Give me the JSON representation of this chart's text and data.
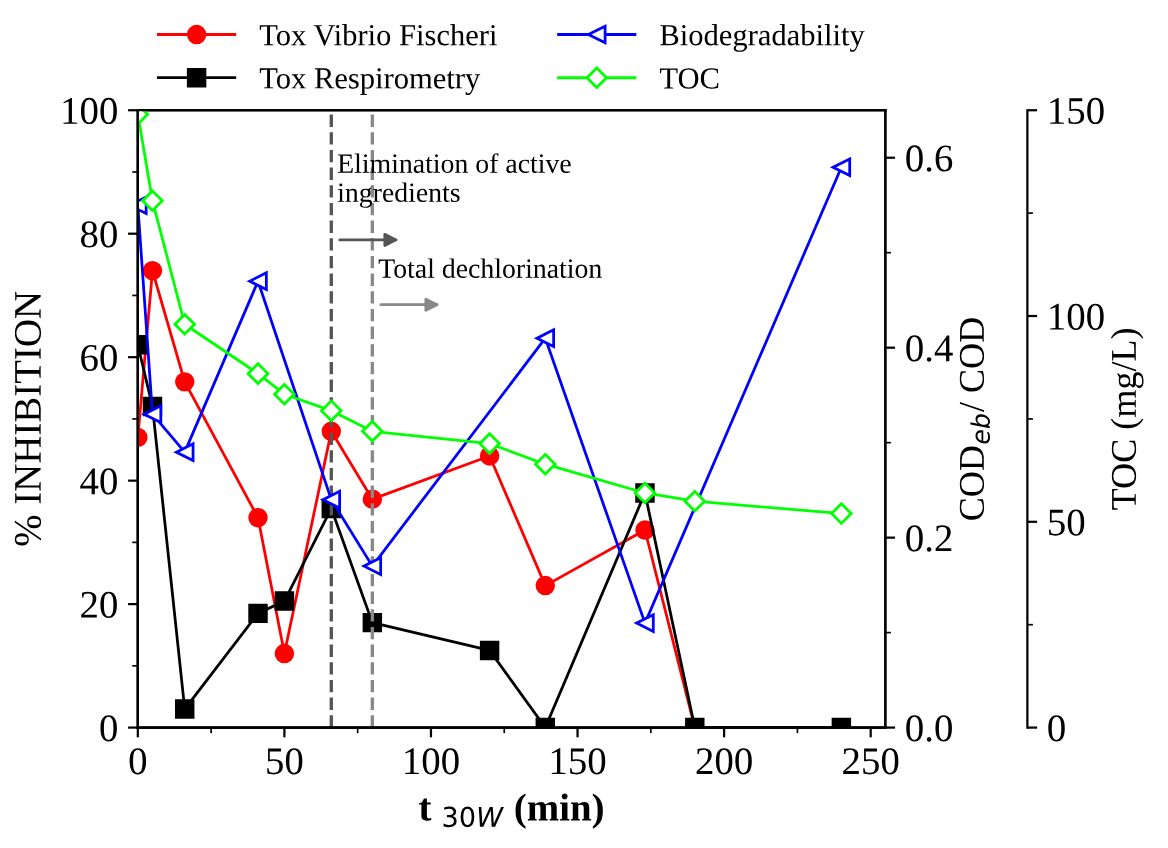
{
  "chart_data": {
    "type": "line",
    "xlabel": "t $_{30W}$ (min)",
    "ylabel": "% INHIBITION",
    "y2label": "COD$_{eb}$/ COD",
    "y3label": "TOC (mg/L)",
    "xlim": [
      0,
      255
    ],
    "xticks": [
      0,
      50,
      100,
      150,
      200,
      250
    ],
    "ylim": [
      0,
      100
    ],
    "yticks": [
      0,
      20,
      40,
      60,
      80,
      100
    ],
    "y2lim": [
      0,
      0.65
    ],
    "y2ticks": [
      {
        "value": 0,
        "label": "0.0"
      },
      0.2,
      0.4,
      0.6
    ],
    "y3lim": [
      0,
      150
    ],
    "y3ticks": [
      0,
      50,
      100,
      150
    ],
    "legend": "top",
    "grid": false,
    "series": [
      {
        "name": "Tox Vibrio Fischeri",
        "color": "#ff0000",
        "marker": "circle",
        "x": [
          0,
          5,
          16,
          41,
          50,
          66,
          80,
          120,
          139,
          173,
          190
        ],
        "values": [
          47,
          74,
          56,
          34,
          12,
          48,
          37,
          44,
          23,
          32,
          0
        ]
      },
      {
        "name": "Tox Respirometry",
        "color": "#000000",
        "marker": "square",
        "x": [
          0,
          5,
          16,
          41,
          50,
          66,
          80,
          120,
          139,
          173,
          190,
          240
        ],
        "values": [
          62,
          52,
          3,
          18.5,
          20.5,
          35.5,
          17,
          12.5,
          0,
          38,
          0,
          0
        ]
      },
      {
        "name": "Biodegradability",
        "color": "#0000ff",
        "marker": "triangle",
        "axis": "y2",
        "x": [
          0,
          5,
          16,
          41,
          66,
          80,
          139,
          173,
          240
        ],
        "values": [
          0.55,
          0.33,
          0.29,
          0.47,
          0.24,
          0.17,
          0.41,
          0.11,
          0.59
        ]
      },
      {
        "name": "TOC",
        "color": "#00ff00",
        "marker": "diamond",
        "axis": "y3",
        "x": [
          0,
          5,
          16,
          41,
          50,
          66,
          80,
          120,
          139,
          173,
          190,
          240
        ],
        "values": [
          149,
          128,
          98,
          86,
          81,
          77,
          72,
          69,
          64,
          57,
          55,
          52
        ]
      }
    ],
    "ref_lines": [
      {
        "axis": "x",
        "value": 66,
        "label": "Elimination of active\ningredients",
        "color": "#555555",
        "line_style": "dashed"
      },
      {
        "axis": "x",
        "value": 80,
        "label": "Total dechlorination",
        "color": "#888888",
        "line_style": "dashed"
      }
    ]
  }
}
